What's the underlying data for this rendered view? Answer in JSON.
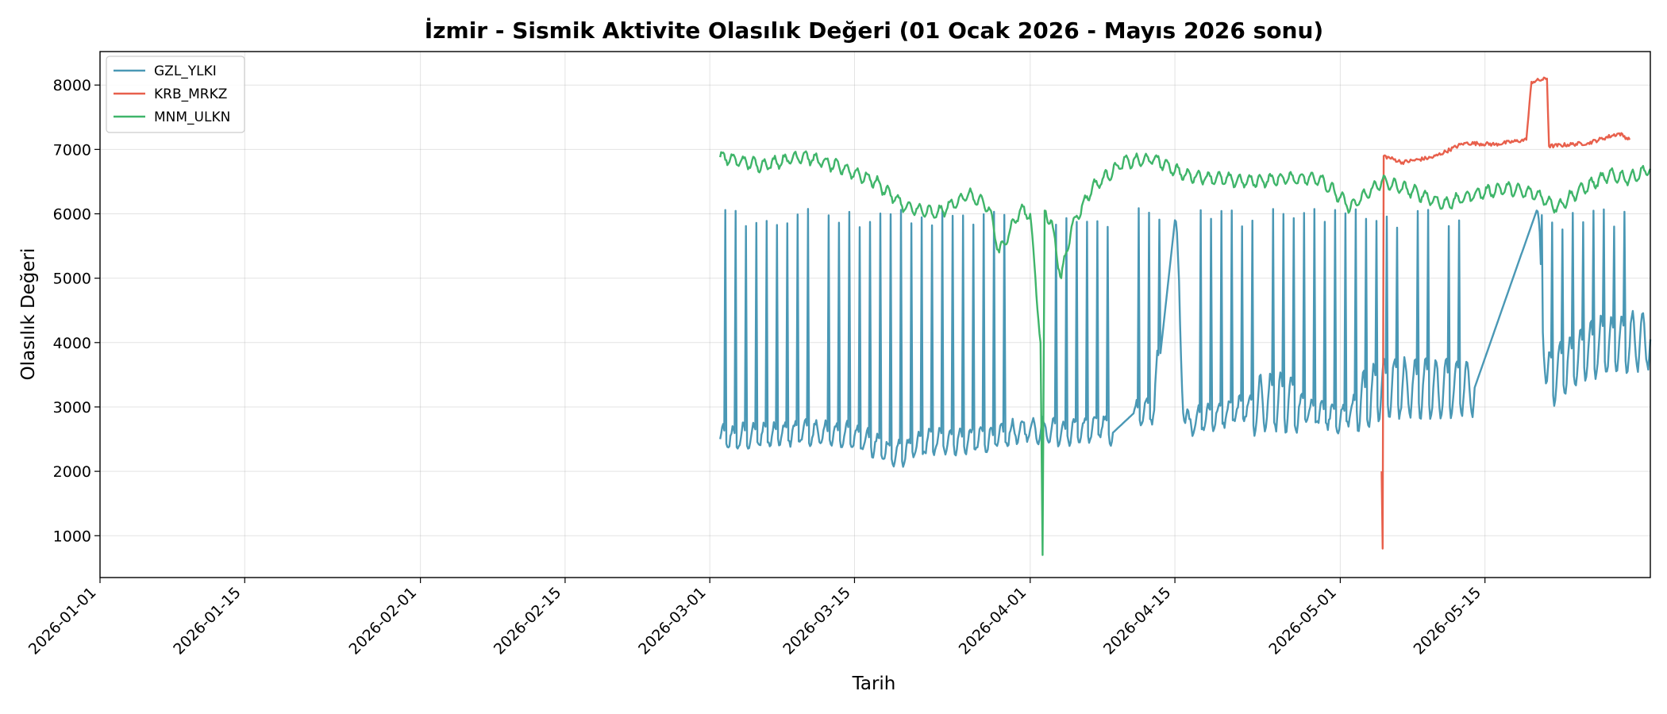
{
  "chart_data": {
    "type": "line",
    "title": "İzmir - Sismik Aktivite Olasılık Değeri (01 Ocak 2026 - Mayıs 2026 sonu)",
    "xlabel": "Tarih",
    "ylabel": "Olasılık Değeri",
    "xlim": [
      "2026-01-01",
      "2026-05-31"
    ],
    "ylim": [
      350,
      8520
    ],
    "x_ticks": [
      "2026-01-01",
      "2026-01-15",
      "2026-02-01",
      "2026-02-15",
      "2026-03-01",
      "2026-03-15",
      "2026-04-01",
      "2026-04-15",
      "2026-05-01",
      "2026-05-15"
    ],
    "y_ticks": [
      1000,
      2000,
      3000,
      4000,
      5000,
      6000,
      7000,
      8000
    ],
    "grid": true,
    "legend_position": "top-left",
    "series": [
      {
        "name": "GZL_YLKI",
        "color": "#4a98b5",
        "sampling_days": 0.1,
        "pattern": "daily oscillation with periodic sharp spikes (~5900-6100)",
        "points": [
          {
            "x": "2026-03-02",
            "y": 2500
          },
          {
            "x": "2026-03-05",
            "y": 2550
          },
          {
            "x": "2026-03-10",
            "y": 2600
          },
          {
            "x": "2026-03-15",
            "y": 2550
          },
          {
            "x": "2026-03-19",
            "y": 2250
          },
          {
            "x": "2026-03-22",
            "y": 2450
          },
          {
            "x": "2026-03-28",
            "y": 2500
          },
          {
            "x": "2026-04-01",
            "y": 2650
          },
          {
            "x": "2026-04-05",
            "y": 2600
          },
          {
            "x": "2026-04-08",
            "y": 2700
          },
          {
            "x": "2026-04-09",
            "y": 2600
          },
          {
            "x": "2026-04-11",
            "y": 2900
          },
          {
            "x": "2026-04-13",
            "y": 2950
          },
          {
            "x": "2026-04-15",
            "y": 5900
          },
          {
            "x": "2026-04-16",
            "y": 2750
          },
          {
            "x": "2026-04-20",
            "y": 2900
          },
          {
            "x": "2026-04-25",
            "y": 3100
          },
          {
            "x": "2026-05-01",
            "y": 2800
          },
          {
            "x": "2026-05-05",
            "y": 3300
          },
          {
            "x": "2026-05-10",
            "y": 3300
          },
          {
            "x": "2026-05-14",
            "y": 3300
          },
          {
            "x": "2026-05-20",
            "y": 6050
          },
          {
            "x": "2026-05-21",
            "y": 3400
          },
          {
            "x": "2026-05-25",
            "y": 3900
          },
          {
            "x": "2026-05-31",
            "y": 4050
          }
        ]
      },
      {
        "name": "KRB_MRKZ",
        "color": "#e8604c",
        "sampling_days": 0.1,
        "points": [
          {
            "x": "2026-05-05",
            "y": 2000
          },
          {
            "x": "2026-05-05.1",
            "y": 800
          },
          {
            "x": "2026-05-05.2",
            "y": 6900
          },
          {
            "x": "2026-05-07",
            "y": 6800
          },
          {
            "x": "2026-05-10",
            "y": 6880
          },
          {
            "x": "2026-05-13",
            "y": 7100
          },
          {
            "x": "2026-05-16",
            "y": 7080
          },
          {
            "x": "2026-05-19",
            "y": 7150
          },
          {
            "x": "2026-05-19.5",
            "y": 8050
          },
          {
            "x": "2026-05-21",
            "y": 8100
          },
          {
            "x": "2026-05-21.2",
            "y": 7050
          },
          {
            "x": "2026-05-25",
            "y": 7100
          },
          {
            "x": "2026-05-28",
            "y": 7250
          },
          {
            "x": "2026-05-29",
            "y": 7150
          }
        ]
      },
      {
        "name": "MNM_ULKN",
        "color": "#3fb56a",
        "sampling_days": 0.1,
        "points": [
          {
            "x": "2026-03-02",
            "y": 6880
          },
          {
            "x": "2026-03-06",
            "y": 6750
          },
          {
            "x": "2026-03-10",
            "y": 6900
          },
          {
            "x": "2026-03-14",
            "y": 6700
          },
          {
            "x": "2026-03-17",
            "y": 6500
          },
          {
            "x": "2026-03-20",
            "y": 6100
          },
          {
            "x": "2026-03-23",
            "y": 6000
          },
          {
            "x": "2026-03-26",
            "y": 6300
          },
          {
            "x": "2026-03-28",
            "y": 6100
          },
          {
            "x": "2026-03-29",
            "y": 5400
          },
          {
            "x": "2026-03-31",
            "y": 6050
          },
          {
            "x": "2026-04-01",
            "y": 6000
          },
          {
            "x": "2026-04-02",
            "y": 4000
          },
          {
            "x": "2026-04-02.2",
            "y": 700
          },
          {
            "x": "2026-04-02.4",
            "y": 6050
          },
          {
            "x": "2026-04-03",
            "y": 5900
          },
          {
            "x": "2026-04-04",
            "y": 5000
          },
          {
            "x": "2026-04-05",
            "y": 5800
          },
          {
            "x": "2026-04-07",
            "y": 6400
          },
          {
            "x": "2026-04-10",
            "y": 6800
          },
          {
            "x": "2026-04-13",
            "y": 6850
          },
          {
            "x": "2026-04-16",
            "y": 6600
          },
          {
            "x": "2026-04-19",
            "y": 6550
          },
          {
            "x": "2026-04-22",
            "y": 6500
          },
          {
            "x": "2026-04-26",
            "y": 6550
          },
          {
            "x": "2026-04-29",
            "y": 6550
          },
          {
            "x": "2026-05-02",
            "y": 6100
          },
          {
            "x": "2026-05-05",
            "y": 6500
          },
          {
            "x": "2026-05-08",
            "y": 6350
          },
          {
            "x": "2026-05-11",
            "y": 6150
          },
          {
            "x": "2026-05-14",
            "y": 6300
          },
          {
            "x": "2026-05-17",
            "y": 6400
          },
          {
            "x": "2026-05-20",
            "y": 6300
          },
          {
            "x": "2026-05-22",
            "y": 6100
          },
          {
            "x": "2026-05-24",
            "y": 6350
          },
          {
            "x": "2026-05-27",
            "y": 6600
          },
          {
            "x": "2026-05-29",
            "y": 6550
          },
          {
            "x": "2026-05-31",
            "y": 6700
          }
        ]
      }
    ]
  }
}
